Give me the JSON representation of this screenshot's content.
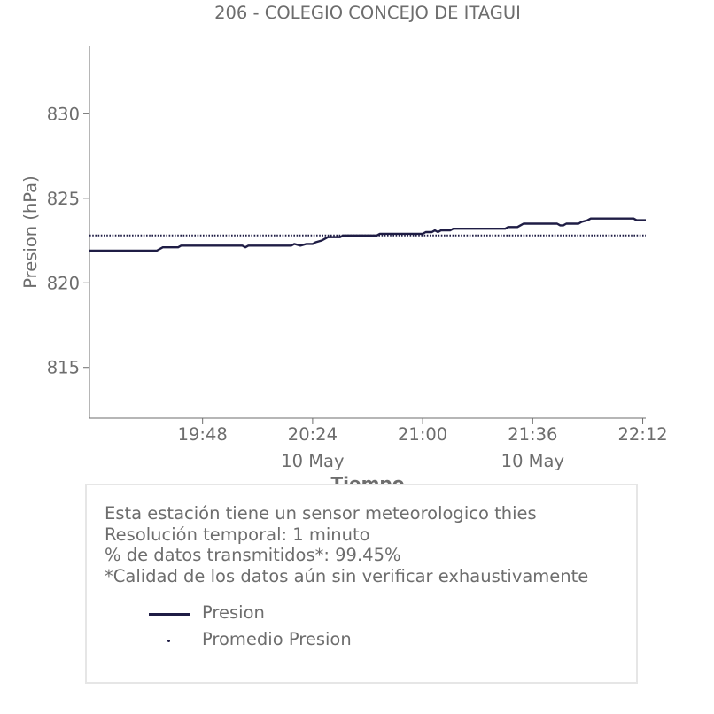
{
  "chart_data": {
    "type": "line",
    "title": "206 - COLEGIO CONCEJO DE ITAGUI",
    "xlabel": "Tiempo",
    "ylabel": "Presion (hPa)",
    "xlim": [
      "19:11",
      "22:13"
    ],
    "ylim": [
      812,
      834
    ],
    "y_ticks": [
      815,
      820,
      825,
      830
    ],
    "x_ticks": [
      {
        "time": "19:48",
        "label": "19:48",
        "sublabel": ""
      },
      {
        "time": "20:24",
        "label": "20:24",
        "sublabel": "10 May"
      },
      {
        "time": "21:00",
        "label": "21:00",
        "sublabel": ""
      },
      {
        "time": "21:36",
        "label": "21:36",
        "sublabel": "10 May"
      },
      {
        "time": "22:12",
        "label": "22:12",
        "sublabel": ""
      }
    ],
    "grid": false,
    "series": [
      {
        "name": "Presion",
        "style": "solid",
        "color": "#1f1d45",
        "points": [
          [
            "19:11",
            821.9
          ],
          [
            "19:33",
            821.9
          ],
          [
            "19:35",
            822.1
          ],
          [
            "19:40",
            822.1
          ],
          [
            "19:41",
            822.2
          ],
          [
            "20:01",
            822.2
          ],
          [
            "20:02",
            822.1
          ],
          [
            "20:03",
            822.2
          ],
          [
            "20:17",
            822.2
          ],
          [
            "20:18",
            822.3
          ],
          [
            "20:20",
            822.2
          ],
          [
            "20:22",
            822.3
          ],
          [
            "20:24",
            822.3
          ],
          [
            "20:25",
            822.4
          ],
          [
            "20:27",
            822.5
          ],
          [
            "20:28",
            822.6
          ],
          [
            "20:29",
            822.7
          ],
          [
            "20:33",
            822.7
          ],
          [
            "20:34",
            822.8
          ],
          [
            "20:45",
            822.8
          ],
          [
            "20:46",
            822.9
          ],
          [
            "21:00",
            822.9
          ],
          [
            "21:01",
            823.0
          ],
          [
            "21:03",
            823.0
          ],
          [
            "21:04",
            823.1
          ],
          [
            "21:05",
            823.0
          ],
          [
            "21:06",
            823.1
          ],
          [
            "21:09",
            823.1
          ],
          [
            "21:10",
            823.2
          ],
          [
            "21:27",
            823.2
          ],
          [
            "21:28",
            823.3
          ],
          [
            "21:31",
            823.3
          ],
          [
            "21:32",
            823.4
          ],
          [
            "21:33",
            823.5
          ],
          [
            "21:44",
            823.5
          ],
          [
            "21:45",
            823.4
          ],
          [
            "21:46",
            823.4
          ],
          [
            "21:47",
            823.5
          ],
          [
            "21:51",
            823.5
          ],
          [
            "21:52",
            823.6
          ],
          [
            "21:54",
            823.7
          ],
          [
            "21:55",
            823.8
          ],
          [
            "22:09",
            823.8
          ],
          [
            "22:10",
            823.7
          ],
          [
            "22:13",
            823.7
          ]
        ]
      },
      {
        "name": "Promedio Presion",
        "style": "dotted",
        "color": "#1f1d45",
        "points": [
          [
            "19:11",
            822.8
          ],
          [
            "22:13",
            822.8
          ]
        ]
      }
    ]
  },
  "info": {
    "lines": [
      "Esta estación tiene un sensor meteorologico thies",
      "Resolución temporal: 1 minuto",
      "% de datos transmitidos*: 99.45%",
      "*Calidad de los datos aún sin verificar exhaustivamente"
    ]
  },
  "legend": {
    "items": [
      "Presion",
      "Promedio Presion"
    ]
  }
}
